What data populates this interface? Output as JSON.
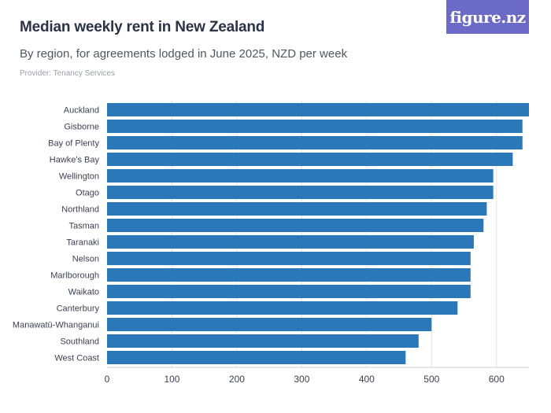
{
  "header": {
    "title": "Median weekly rent in New Zealand",
    "subtitle": "By region, for agreements lodged in June 2025, NZD per week",
    "provider": "Provider: Tenancy Services",
    "logo_text": "figure.nz"
  },
  "colors": {
    "bar": "#2b78b8",
    "grid": "#e3e6ea",
    "axis_text": "#3c4250",
    "logo_bg": "#6b6bc7"
  },
  "chart_data": {
    "type": "bar",
    "orientation": "horizontal",
    "title": "Median weekly rent in New Zealand",
    "subtitle": "By region, for agreements lodged in June 2025, NZD per week",
    "xlabel": "",
    "ylabel": "",
    "xlim": [
      0,
      650
    ],
    "xticks": [
      0,
      100,
      200,
      300,
      400,
      500,
      600
    ],
    "grid": "vertical",
    "categories": [
      "Auckland",
      "Gisborne",
      "Bay of Plenty",
      "Hawke's Bay",
      "Wellington",
      "Otago",
      "Northland",
      "Tasman",
      "Taranaki",
      "Nelson",
      "Marlborough",
      "Waikato",
      "Canterbury",
      "Manawatū-Whanganui",
      "Southland",
      "West Coast"
    ],
    "values": [
      650,
      640,
      640,
      625,
      595,
      595,
      585,
      580,
      565,
      560,
      560,
      560,
      540,
      500,
      480,
      460
    ]
  }
}
